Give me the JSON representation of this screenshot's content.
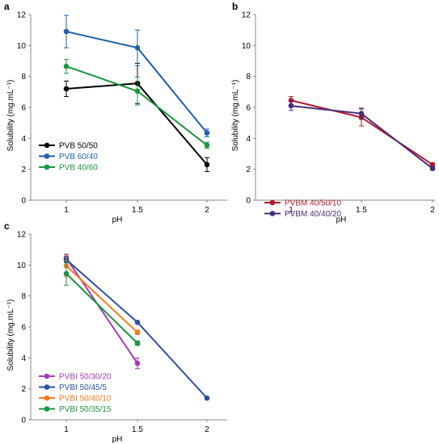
{
  "chart_data": [
    {
      "panel": "a",
      "type": "line",
      "xlabel": "pH",
      "ylabel": "Solubility (mg.mL⁻¹)",
      "ylim": [
        0,
        12
      ],
      "yticks": [
        0,
        2,
        4,
        6,
        8,
        10,
        12
      ],
      "xcategories": [
        "1",
        "1.5",
        "2"
      ],
      "legend_position": "bottom-left",
      "series": [
        {
          "name": "PVB 50/50",
          "color": "#000000",
          "values": [
            7.2,
            7.55,
            2.3
          ],
          "errors": [
            0.5,
            1.3,
            0.45
          ]
        },
        {
          "name": "PVB 60/40",
          "color": "#1f5fa8",
          "values": [
            10.9,
            9.85,
            4.35
          ],
          "errors": [
            1.05,
            1.15,
            0.25
          ]
        },
        {
          "name": "PVB 40/60",
          "color": "#1a9641",
          "values": [
            8.65,
            7.05,
            3.55
          ],
          "errors": [
            0.45,
            0.9,
            0.2
          ]
        }
      ]
    },
    {
      "panel": "b",
      "type": "line",
      "xlabel": "pH",
      "ylabel": "Solubility (mg.mL⁻¹)",
      "ylim": [
        0,
        12
      ],
      "yticks": [
        0,
        2,
        4,
        6,
        8,
        10,
        12
      ],
      "xcategories": [
        "1",
        "1.5",
        "2"
      ],
      "legend_position": "bottom-left",
      "series": [
        {
          "name": "PVBM 40/50/10",
          "color": "#b2182b",
          "values": [
            6.45,
            5.35,
            2.3
          ],
          "errors": [
            0.25,
            0.55,
            0.1
          ]
        },
        {
          "name": "PVBM 40/40/20",
          "color": "#4b2c7a",
          "values": [
            6.1,
            5.6,
            2.05
          ],
          "errors": [
            0.3,
            0.35,
            0.1
          ]
        }
      ]
    },
    {
      "panel": "c",
      "type": "line",
      "xlabel": "pH",
      "ylabel": "Solubility (mg.mL⁻¹)",
      "ylim": [
        0,
        12
      ],
      "yticks": [
        0,
        2,
        4,
        6,
        8,
        10,
        12
      ],
      "xcategories": [
        "1",
        "1.5",
        "2"
      ],
      "legend_position": "bottom-left",
      "series": [
        {
          "name": "PVBI 50/30/20",
          "color": "#a23cb4",
          "values": [
            10.45,
            3.65,
            null
          ],
          "errors": [
            0.25,
            0.35,
            null
          ]
        },
        {
          "name": "PVBI 50/45/5",
          "color": "#2b4f9e",
          "values": [
            10.35,
            6.3,
            1.4
          ],
          "errors": [
            0.2,
            0.05,
            0.05
          ]
        },
        {
          "name": "PVBI 50/40/10",
          "color": "#f57c20",
          "values": [
            9.95,
            5.65,
            null
          ],
          "errors": [
            0.7,
            0.15,
            null
          ]
        },
        {
          "name": "PVBI 50/35/15",
          "color": "#1a9641",
          "values": [
            9.45,
            4.95,
            null
          ],
          "errors": [
            0.75,
            0.15,
            null
          ]
        }
      ]
    }
  ]
}
